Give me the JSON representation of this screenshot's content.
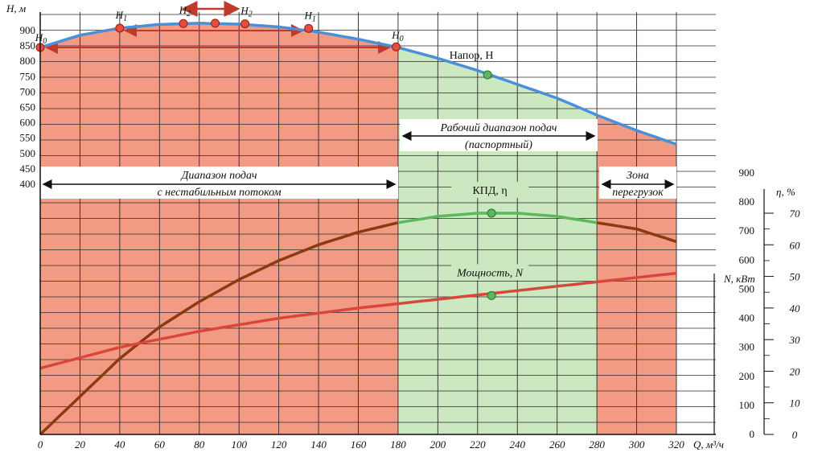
{
  "chart_data": {
    "type": "line",
    "x_axis": {
      "label": "Q, м³/ч",
      "range": [
        0,
        320
      ],
      "ticks": [
        "0",
        "20",
        "40",
        "60",
        "80",
        "100",
        "120",
        "140",
        "160",
        "180",
        "200",
        "220",
        "240",
        "260",
        "280",
        "300",
        "320"
      ]
    },
    "y_axis_head": {
      "label": "H, м",
      "range": [
        400,
        950
      ],
      "ticks": [
        "400",
        "450",
        "500",
        "550",
        "600",
        "650",
        "700",
        "750",
        "800",
        "850",
        "900"
      ]
    },
    "y_axis_power": {
      "label": "N, кВт",
      "range": [
        0,
        1000
      ],
      "ticks": [
        "0",
        "100",
        "200",
        "300",
        "400",
        "500",
        "600",
        "700",
        "800",
        "900"
      ]
    },
    "y_axis_efficiency": {
      "label": "η, %",
      "range": [
        0,
        70
      ],
      "ticks": [
        "0",
        "10",
        "20",
        "30",
        "40",
        "50",
        "60",
        "70"
      ]
    },
    "zones": [
      {
        "from": 0,
        "to": 180,
        "color": "#f39a85",
        "label_line1": "Диапазон подач",
        "label_line2": "с нестабильным потоком"
      },
      {
        "from": 180,
        "to": 280,
        "color": "#cce8c0",
        "label_line1": "Рабочий диапазон подач",
        "label_line2": "(паспортный)"
      },
      {
        "from": 280,
        "to": 320,
        "color": "#f39a85",
        "label_line1": "Зона",
        "label_line2": "перегрузок"
      }
    ],
    "series": [
      {
        "name": "Напор, H",
        "axis": "head",
        "color": "#4a90d9",
        "x": [
          0,
          20,
          40,
          60,
          80,
          100,
          120,
          140,
          160,
          180,
          200,
          220,
          240,
          260,
          280,
          300,
          320
        ],
        "y": [
          845,
          885,
          908,
          920,
          924,
          921,
          912,
          895,
          872,
          845,
          810,
          770,
          725,
          680,
          625,
          575,
          530
        ],
        "marker": {
          "x": 225,
          "y": 756
        }
      },
      {
        "name": "КПД, η",
        "axis": "efficiency",
        "color": "#8b3a12",
        "color_working": "#5cb85c",
        "x": [
          0,
          20,
          40,
          60,
          80,
          100,
          120,
          140,
          160,
          180,
          200,
          220,
          240,
          260,
          280,
          300,
          320
        ],
        "y": [
          0,
          12,
          24,
          34,
          42,
          49,
          55,
          60,
          64,
          67,
          69,
          70,
          70,
          69,
          67,
          65,
          61
        ],
        "marker": {
          "x": 227,
          "y": 70
        }
      },
      {
        "name": "Мощность, N",
        "axis": "power",
        "color": "#d9463b",
        "x": [
          0,
          40,
          80,
          120,
          160,
          200,
          240,
          280,
          320
        ],
        "y": [
          228,
          300,
          355,
          400,
          435,
          465,
          495,
          525,
          555
        ],
        "marker": {
          "x": 227,
          "y": 478
        }
      }
    ],
    "head_points": [
      {
        "label": "H",
        "sub": "0",
        "x": 0,
        "y": 845
      },
      {
        "label": "H",
        "sub": "1",
        "x": 40,
        "y": 908
      },
      {
        "label": "H",
        "sub": "2",
        "x": 72,
        "y": 923
      },
      {
        "x": 88,
        "y": 924
      },
      {
        "label": "H",
        "sub": "2",
        "x": 103,
        "y": 922
      },
      {
        "label": "H",
        "sub": "1",
        "x": 135,
        "y": 907
      },
      {
        "label": "H",
        "sub": "0",
        "x": 179,
        "y": 847
      }
    ],
    "grid": true
  }
}
